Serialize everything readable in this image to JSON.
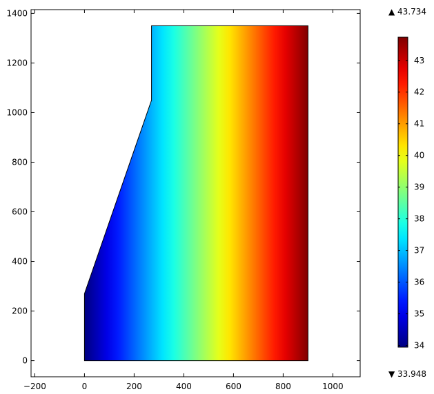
{
  "chart_data": {
    "type": "heatmap",
    "title": "",
    "xlabel": "",
    "ylabel": "",
    "xlim": [
      -215,
      1110
    ],
    "ylim": [
      -65,
      1415
    ],
    "x_ticks": [
      -200,
      0,
      200,
      400,
      600,
      800,
      1000
    ],
    "y_ticks": [
      0,
      200,
      400,
      600,
      800,
      1000,
      1200,
      1400
    ],
    "x_tick_labels": [
      "−200",
      "0",
      "200",
      "400",
      "600",
      "800",
      "1000"
    ],
    "y_tick_labels": [
      "0",
      "200",
      "400",
      "600",
      "800",
      "1000",
      "1200",
      "1400"
    ],
    "grid": false,
    "colormap": "jet",
    "domain_polygon": [
      [
        0,
        0
      ],
      [
        900,
        0
      ],
      [
        900,
        1350
      ],
      [
        270,
        1350
      ],
      [
        270,
        1050
      ],
      [
        0,
        270
      ]
    ],
    "field": {
      "direction": "x",
      "x_range": [
        0,
        900
      ],
      "value_range": [
        33.948,
        43.734
      ]
    },
    "colorbar": {
      "min": 33.948,
      "max": 43.734,
      "ticks": [
        34,
        35,
        36,
        37,
        38,
        39,
        40,
        41,
        42,
        43
      ],
      "tick_labels": [
        "34",
        "35",
        "36",
        "37",
        "38",
        "39",
        "40",
        "41",
        "42",
        "43"
      ],
      "max_label": "▲ 43.734",
      "min_label": "▼ 33.948"
    }
  }
}
